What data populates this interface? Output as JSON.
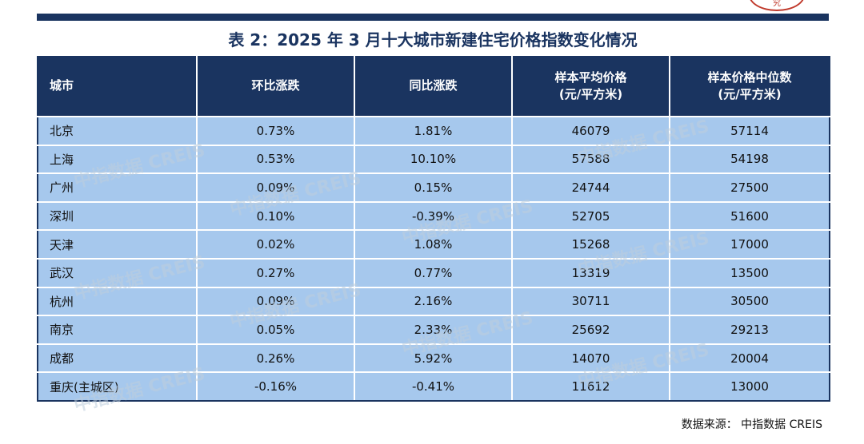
{
  "title": "表 2：2025 年 3 月十大城市新建住宅价格指数变化情况",
  "stamp_text": "究",
  "table": {
    "headers": [
      {
        "line1": "城市",
        "line2": ""
      },
      {
        "line1": "环比涨跌",
        "line2": ""
      },
      {
        "line1": "同比涨跌",
        "line2": ""
      },
      {
        "line1": "样本平均价格",
        "line2": "(元/平方米)"
      },
      {
        "line1": "样本价格中位数",
        "line2": "(元/平方米)"
      }
    ],
    "rows": [
      [
        "北京",
        "0.73%",
        "1.81%",
        "46079",
        "57114"
      ],
      [
        "上海",
        "0.53%",
        "10.10%",
        "57588",
        "54198"
      ],
      [
        "广州",
        "0.09%",
        "0.15%",
        "24744",
        "27500"
      ],
      [
        "深圳",
        "0.10%",
        "-0.39%",
        "52705",
        "51600"
      ],
      [
        "天津",
        "0.02%",
        "1.08%",
        "15268",
        "17000"
      ],
      [
        "武汉",
        "0.27%",
        "0.77%",
        "13319",
        "13500"
      ],
      [
        "杭州",
        "0.09%",
        "2.16%",
        "30711",
        "30500"
      ],
      [
        "南京",
        "0.05%",
        "2.33%",
        "25692",
        "29213"
      ],
      [
        "成都",
        "0.26%",
        "5.92%",
        "14070",
        "20004"
      ],
      [
        "重庆(主城区)",
        "-0.16%",
        "-0.41%",
        "11612",
        "13000"
      ]
    ]
  },
  "watermark": "中指数据 CREIS",
  "source": "数据来源：   中指数据 CREIS",
  "colors": {
    "header_bg": "#1a3460",
    "row_bg": "#a6c8ed",
    "accent_bar": "#1a3460"
  }
}
